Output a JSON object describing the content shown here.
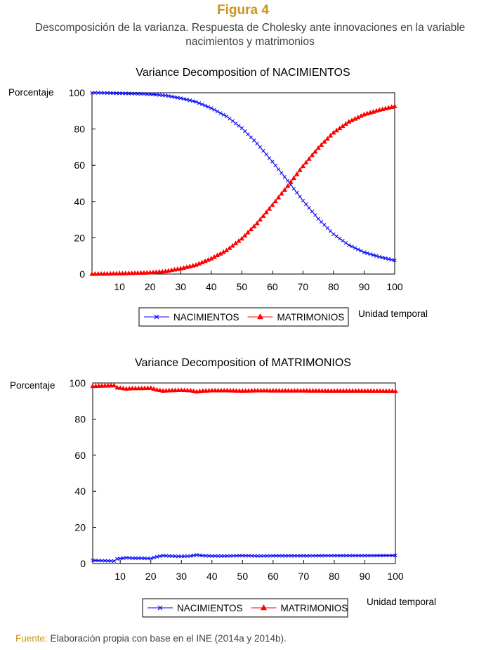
{
  "figure": {
    "title": "Figura 4",
    "subtitle": "Descomposición de la varianza. Respuesta de Cholesky ante innovaciones en la variable nacimientos y matrimonios"
  },
  "colors": {
    "title_accent": "#c8961e",
    "nacimientos": "#0000ff",
    "matrimonios": "#ff0000"
  },
  "source": {
    "label": "Fuente:",
    "text": " Elaboración propia con base en el INE (2014a y 2014b)."
  },
  "chart_data": [
    {
      "type": "line",
      "title": "Variance Decomposition of NACIMIENTOS",
      "ylabel": "Porcentaje",
      "xlabel": "Unidad temporal",
      "xlim": [
        1,
        100
      ],
      "ylim": [
        0,
        100
      ],
      "x_ticks": [
        10,
        20,
        30,
        40,
        50,
        60,
        70,
        80,
        90,
        100
      ],
      "y_ticks": [
        0,
        20,
        40,
        60,
        80,
        100
      ],
      "grid": false,
      "legend": "bottom-center",
      "series": [
        {
          "name": "NACIMIENTOS",
          "color": "#0000ff",
          "marker": "x",
          "x": [
            1,
            5,
            10,
            15,
            20,
            25,
            30,
            35,
            40,
            45,
            50,
            55,
            60,
            65,
            70,
            75,
            80,
            85,
            90,
            95,
            100
          ],
          "values": [
            100,
            99.9,
            99.7,
            99.5,
            99.2,
            98.5,
            97,
            95,
            91.5,
            87,
            80.5,
            72,
            62,
            51.5,
            40.5,
            30.5,
            22,
            16,
            12,
            9.5,
            7.5
          ]
        },
        {
          "name": "MATRIMONIOS",
          "color": "#ff0000",
          "marker": "triangle",
          "x": [
            1,
            5,
            10,
            15,
            20,
            25,
            30,
            35,
            40,
            45,
            50,
            55,
            60,
            65,
            70,
            75,
            80,
            85,
            90,
            95,
            100
          ],
          "values": [
            0,
            0.1,
            0.3,
            0.5,
            0.8,
            1.5,
            3,
            5,
            8.5,
            13,
            19.5,
            28,
            38,
            48.5,
            59.5,
            69.5,
            78,
            84,
            88,
            90.5,
            92.5
          ]
        }
      ]
    },
    {
      "type": "line",
      "title": "Variance Decomposition of MATRIMONIOS",
      "ylabel": "Porcentaje",
      "xlabel": "Unidad temporal",
      "xlim": [
        1,
        100
      ],
      "ylim": [
        0,
        100
      ],
      "x_ticks": [
        10,
        20,
        30,
        40,
        50,
        60,
        70,
        80,
        90,
        100
      ],
      "y_ticks": [
        0,
        20,
        40,
        60,
        80,
        100
      ],
      "grid": false,
      "legend": "bottom-center",
      "series": [
        {
          "name": "NACIMIENTOS",
          "color": "#0000ff",
          "marker": "x",
          "x": [
            1,
            4,
            8,
            9,
            12,
            14,
            17,
            20,
            22,
            24,
            26,
            30,
            33,
            35,
            37,
            40,
            45,
            50,
            55,
            60,
            70,
            80,
            90,
            100
          ],
          "values": [
            1.8,
            1.6,
            1.4,
            2.6,
            3.2,
            3.0,
            3.0,
            2.8,
            3.8,
            4.4,
            4.2,
            4.0,
            4.2,
            4.8,
            4.4,
            4.2,
            4.2,
            4.4,
            4.2,
            4.3,
            4.3,
            4.4,
            4.4,
            4.5
          ]
        },
        {
          "name": "MATRIMONIOS",
          "color": "#ff0000",
          "marker": "triangle",
          "x": [
            1,
            4,
            8,
            9,
            12,
            14,
            17,
            20,
            22,
            24,
            26,
            30,
            33,
            35,
            37,
            40,
            45,
            50,
            55,
            60,
            70,
            80,
            90,
            100
          ],
          "values": [
            98.2,
            98.4,
            98.6,
            97.4,
            96.8,
            97.0,
            97.0,
            97.2,
            96.2,
            95.6,
            95.8,
            96.0,
            95.8,
            95.2,
            95.6,
            95.8,
            95.8,
            95.6,
            95.8,
            95.7,
            95.7,
            95.6,
            95.6,
            95.5
          ]
        }
      ]
    }
  ]
}
